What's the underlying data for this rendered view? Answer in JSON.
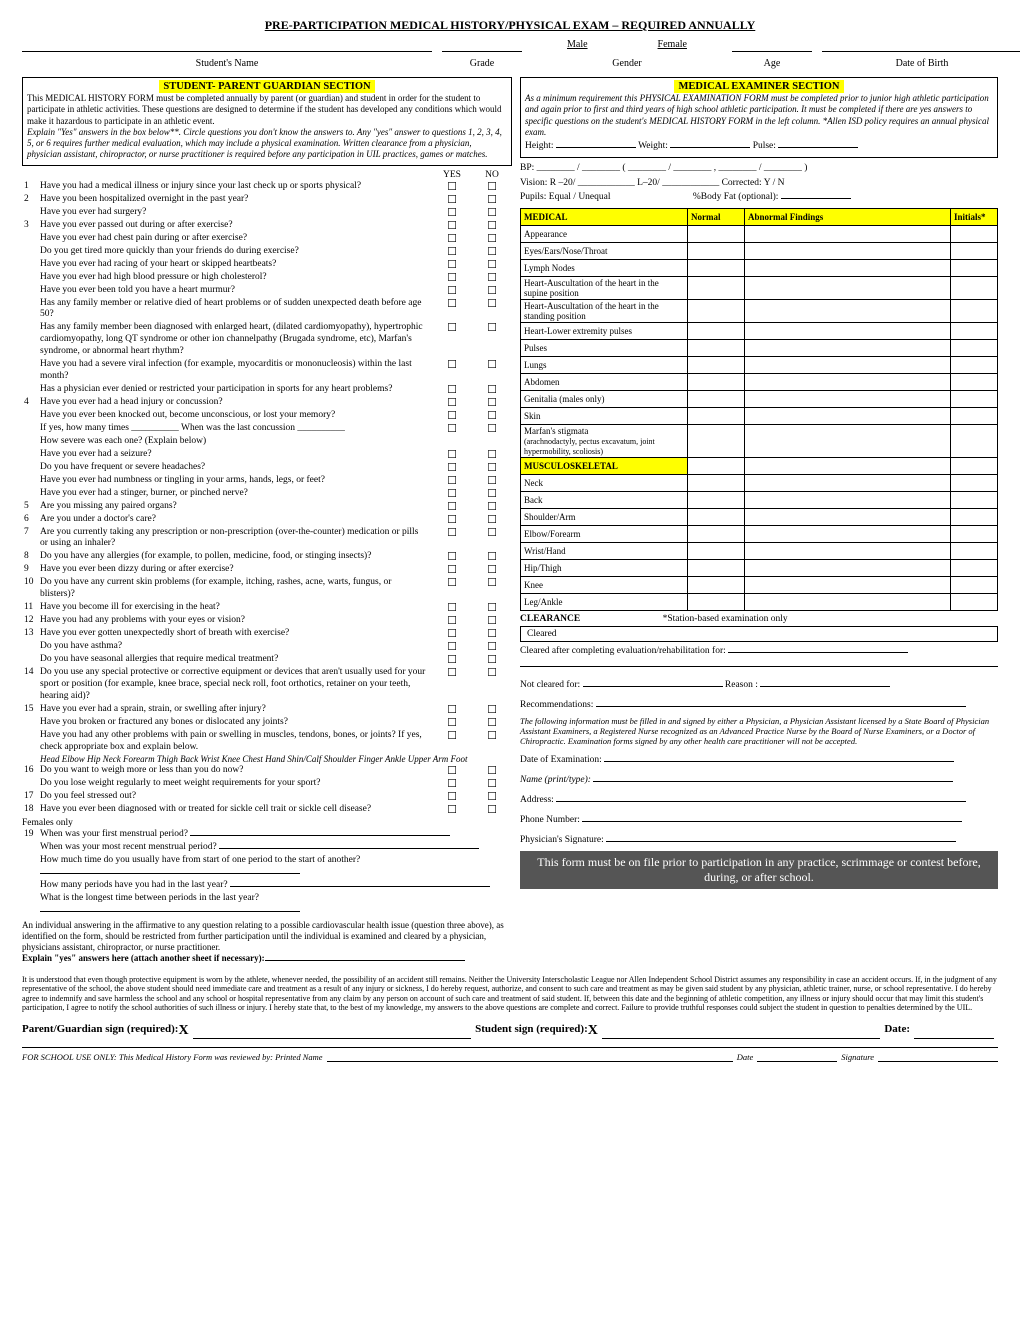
{
  "title": "PRE-PARTICIPATION MEDICAL HISTORY/PHYSICAL EXAM – REQUIRED ANNUALLY",
  "header": {
    "student_name": "Student's Name",
    "grade": "Grade",
    "male": "Male",
    "female": "Female",
    "gender": "Gender",
    "age": "Age",
    "dob": "Date of Birth"
  },
  "student_section": {
    "title": "STUDENT- PARENT GUARDIAN SECTION",
    "text1": "This MEDICAL HISTORY FORM must be completed annually by parent (or guardian) and student in order for the student to participate in athletic activities. These questions are designed to determine if the student has developed any conditions which would make it hazardous to participate in an athletic event.",
    "text2": "Explain \"Yes\" answers in the box below**. Circle questions you don't know the answers to. Any \"yes\" answer to questions 1, 2, 3, 4, 5, or 6 requires further medical evaluation, which may include a physical examination. Written clearance from a physician, physician assistant, chiropractor, or nurse practitioner is required before any participation in UIL practices, games or matches."
  },
  "yes": "YES",
  "no": "NO",
  "questions": [
    {
      "n": "1",
      "t": "Have you had a medical illness or injury since your last check up or sports physical?",
      "y": 1,
      "no": 1
    },
    {
      "n": "2",
      "t": "Have you been hospitalized overnight in the past year?",
      "y": 1,
      "no": 1
    },
    {
      "n": "",
      "t": "Have you ever had surgery?",
      "y": 1,
      "no": 1
    },
    {
      "n": "3",
      "t": "Have you ever passed out during or after exercise?",
      "y": 1,
      "no": 1
    },
    {
      "n": "",
      "t": "Have you ever had chest pain during or after exercise?",
      "y": 1,
      "no": 1
    },
    {
      "n": "",
      "t": "Do you get tired more quickly than your friends do during exercise?",
      "y": 1,
      "no": 1
    },
    {
      "n": "",
      "t": "Have you ever had racing of your heart or skipped heartbeats?",
      "y": 1,
      "no": 1
    },
    {
      "n": "",
      "t": "Have you ever had high blood pressure or high cholesterol?",
      "y": 1,
      "no": 1
    },
    {
      "n": "",
      "t": "Have you ever been told you have a heart murmur?",
      "y": 1,
      "no": 1
    },
    {
      "n": "",
      "t": "Has any family member or relative died of heart problems or of sudden unexpected death before age 50?",
      "y": 1,
      "no": 1
    },
    {
      "n": "",
      "t": "Has any family member been diagnosed with enlarged heart, (dilated cardiomyopathy), hypertrophic cardiomyopathy, long QT syndrome or other ion channelpathy (Brugada syndrome, etc), Marfan's syndrome, or abnormal heart rhythm?",
      "y": 1,
      "no": 1
    },
    {
      "n": "",
      "t": "Have you had a severe viral infection (for example, myocarditis or mononucleosis) within the last month?",
      "y": 1,
      "no": 1
    },
    {
      "n": "",
      "t": "Has a physician ever denied or restricted your participation in sports for any heart problems?",
      "y": 1,
      "no": 1
    },
    {
      "n": "4",
      "t": "Have you ever had a head injury or concussion?",
      "y": 1,
      "no": 1
    },
    {
      "n": "",
      "t": "Have you ever been knocked out, become unconscious, or lost your memory?",
      "y": 1,
      "no": 1
    },
    {
      "n": "",
      "t": "If yes, how many times __________     When was the last concussion __________",
      "y": 1,
      "no": 1
    },
    {
      "n": "",
      "t": "How severe was each one? (Explain below)",
      "y": 0,
      "no": 0
    },
    {
      "n": "",
      "t": "Have you ever had a seizure?",
      "y": 1,
      "no": 1
    },
    {
      "n": "",
      "t": "Do you have frequent or severe headaches?",
      "y": 1,
      "no": 1
    },
    {
      "n": "",
      "t": "Have you ever had numbness or tingling in your arms, hands, legs, or feet?",
      "y": 1,
      "no": 1
    },
    {
      "n": "",
      "t": "Have you ever had a stinger, burner, or pinched nerve?",
      "y": 1,
      "no": 1
    },
    {
      "n": "5",
      "t": "Are you missing any paired organs?",
      "y": 1,
      "no": 1
    },
    {
      "n": "6",
      "t": "Are you under a doctor's care?",
      "y": 1,
      "no": 1
    },
    {
      "n": "7",
      "t": "Are you currently taking any prescription or non-prescription (over-the-counter) medication or pills or using an inhaler?",
      "y": 1,
      "no": 1
    },
    {
      "n": "8",
      "t": "Do you have any allergies (for example, to pollen, medicine, food, or stinging insects)?",
      "y": 1,
      "no": 1
    },
    {
      "n": "9",
      "t": "Have you ever been dizzy during or after exercise?",
      "y": 1,
      "no": 1
    },
    {
      "n": "10",
      "t": "Do you have any current skin problems (for example, itching, rashes, acne, warts, fungus, or blisters)?",
      "y": 1,
      "no": 1
    },
    {
      "n": "11",
      "t": "Have you become ill for exercising in the heat?",
      "y": 1,
      "no": 1
    },
    {
      "n": "12",
      "t": "Have you had any problems with your eyes or vision?",
      "y": 1,
      "no": 1
    },
    {
      "n": "13",
      "t": "Have you ever gotten unexpectedly short of breath with exercise?",
      "y": 1,
      "no": 1
    },
    {
      "n": "",
      "t": "Do you have asthma?",
      "y": 1,
      "no": 1
    },
    {
      "n": "",
      "t": "Do you have seasonal allergies that require medical treatment?",
      "y": 1,
      "no": 1
    },
    {
      "n": "14",
      "t": "Do you use any special protective or corrective equipment or devices that aren't usually used for your sport or position (for example, knee brace, special neck roll, foot orthotics, retainer on your teeth, hearing aid)?",
      "y": 1,
      "no": 1
    },
    {
      "n": "15",
      "t": "Have you ever had a sprain, strain, or swelling after injury?",
      "y": 1,
      "no": 1
    },
    {
      "n": "",
      "t": "Have you broken or fractured any bones or dislocated any joints?",
      "y": 1,
      "no": 1
    },
    {
      "n": "",
      "t": "Have you had any other problems with pain or swelling in muscles, tendons, bones, or joints?  If yes, check appropriate box and explain below.",
      "y": 1,
      "no": 1
    }
  ],
  "body_parts": "Head   Elbow   Hip   Neck   Forearm   Thigh   Back   Wrist   Knee  Chest   Hand   Shin/Calf   Shoulder   Finger   Ankle   Upper Arm   Foot",
  "questions2": [
    {
      "n": "16",
      "t": "Do you want to weigh more or less than you do now?",
      "y": 1,
      "no": 1
    },
    {
      "n": "",
      "t": "Do you lose weight regularly to meet weight requirements for your sport?",
      "y": 1,
      "no": 1
    },
    {
      "n": "17",
      "t": "Do you feel stressed out?",
      "y": 1,
      "no": 1
    },
    {
      "n": "18",
      "t": "Have you ever been diagnosed with or treated for sickle cell trait or sickle cell disease?",
      "y": 1,
      "no": 1
    }
  ],
  "females_only": "Females only",
  "fem_questions": [
    {
      "n": "19",
      "t": "When was your first menstrual period? "
    },
    {
      "n": "",
      "t": "When was your most recent menstrual period? "
    },
    {
      "n": "",
      "t": "How much time do you usually have from start of one period to the start of another? "
    },
    {
      "n": "",
      "t": "How many periods have you had in the last year? "
    },
    {
      "n": "",
      "t": "What is the longest time between periods in the last year? "
    }
  ],
  "cardio_note": "An individual answering in the affirmative to any question relating to a possible cardiovascular health issue (question three above), as identified on the form, should be restricted from further participation until the individual is examined and cleared by a physician, physicians assistant, chiropractor, or nurse practitioner.",
  "explain": "Explain \"yes\" answers here (attach another sheet if necessary):",
  "examiner_section": {
    "title": "MEDICAL  EXAMINER SECTION",
    "intro": "As a minimum requirement this PHYSICAL EXAMINATION FORM must be completed prior to junior high athletic participation and again prior to first and third years of high school athletic participation. It must be completed if there are yes answers to specific questions on the student's MEDICAL HISTORY FORM in the left column. *Allen ISD policy requires an annual physical exam.",
    "height": "Height:",
    "weight": "Weight:",
    "pulse": "Pulse:",
    "bp": "BP:",
    "vision": "Vision: R –20/ ____________ L–20/ ____________       Corrected: Y / N",
    "pupils": "Pupils:   Equal   /   Unequal",
    "bodyfat": "%Body Fat (optional):"
  },
  "exam_headers": {
    "medical": "MEDICAL",
    "normal": "Normal",
    "abnormal": "Abnormal Findings",
    "initials": "Initials*"
  },
  "exam_rows": [
    "Appearance",
    "Eyes/Ears/Nose/Throat",
    "Lymph Nodes",
    "Heart-Auscultation of the heart in the supine position",
    "Heart-Auscultation of the heart in the standing position",
    "Heart-Lower extremity pulses",
    "Pulses",
    "Lungs",
    "Abdomen",
    "Genitalia (males only)",
    "Skin"
  ],
  "marfan": {
    "t": "Marfan's stigmata",
    "sub": "(arachnodactyly, pectus excavatum, joint hypermobility, scoliosis)"
  },
  "musc_header": "MUSCULOSKELETAL",
  "musc_rows": [
    "Neck",
    "Back",
    "Shoulder/Arm",
    "Elbow/Forearm",
    "Wrist/Hand",
    "Hip/Thigh",
    "Knee",
    "Leg/Ankle"
  ],
  "clearance": "CLEARANCE",
  "station": "*Station-based examination only",
  "cleared": "Cleared",
  "cleared_after": "Cleared after completing evaluation/rehabilitation for:",
  "not_cleared": "Not cleared for:",
  "reason": "Reason :",
  "recommendations": "Recommendations:",
  "phys_note": "The following information must be filled in and signed by either a Physician, a Physician Assistant licensed by a State Board of Physician Assistant Examiners, a Registered Nurse recognized as an Advanced Practice Nurse by the Board of Nurse Examiners, or a Doctor of Chiropractic. Examination forms signed by any other health care practitioner will not be accepted.",
  "date_exam": "Date of Examination:",
  "name_print": "Name (print/type):",
  "address": "Address:",
  "phone": "Phone Number:",
  "phys_sig": "Physician's Signature:",
  "important": "This form must be on file prior to participation in any practice, scrimmage or contest before, during, or after school.",
  "disclaimer": "It is understood that even though protective equipment is worn by the athlete, whenever needed, the possibility of an accident still remains. Neither the University Interscholastic League nor Allen Independent School District assumes any responsibility in case an accident occurs. If, in the judgment of any representative of the school, the above student should need immediate care and treatment as a result of any injury or sickness, I do hereby request, authorize, and consent to such care and treatment as may be given said student by any physician, athletic trainer, nurse, or school representative. I do hereby agree to indemnify and save harmless the school and any school or hospital representative from any claim by any person on account of such care and treatment of said student. If, between this date and the beginning of athletic competition, any illness or injury should occur that may limit this student's participation, I agree to notify the school authorities of such illness or injury. I hereby state that, to the best of my knowledge, my answers to the above questions are complete and correct. Failure to provide truthful responses could subject the student in question to penalties determined by the UIL.",
  "sig_parent": "Parent/Guardian sign (required):",
  "sig_student": "Student sign (required):",
  "sig_date": "Date:",
  "sig_x": "X",
  "school_use": "FOR SCHOOL USE ONLY:   This Medical History Form was reviewed by: Printed Name",
  "school_date": "Date",
  "school_sig": "Signature"
}
